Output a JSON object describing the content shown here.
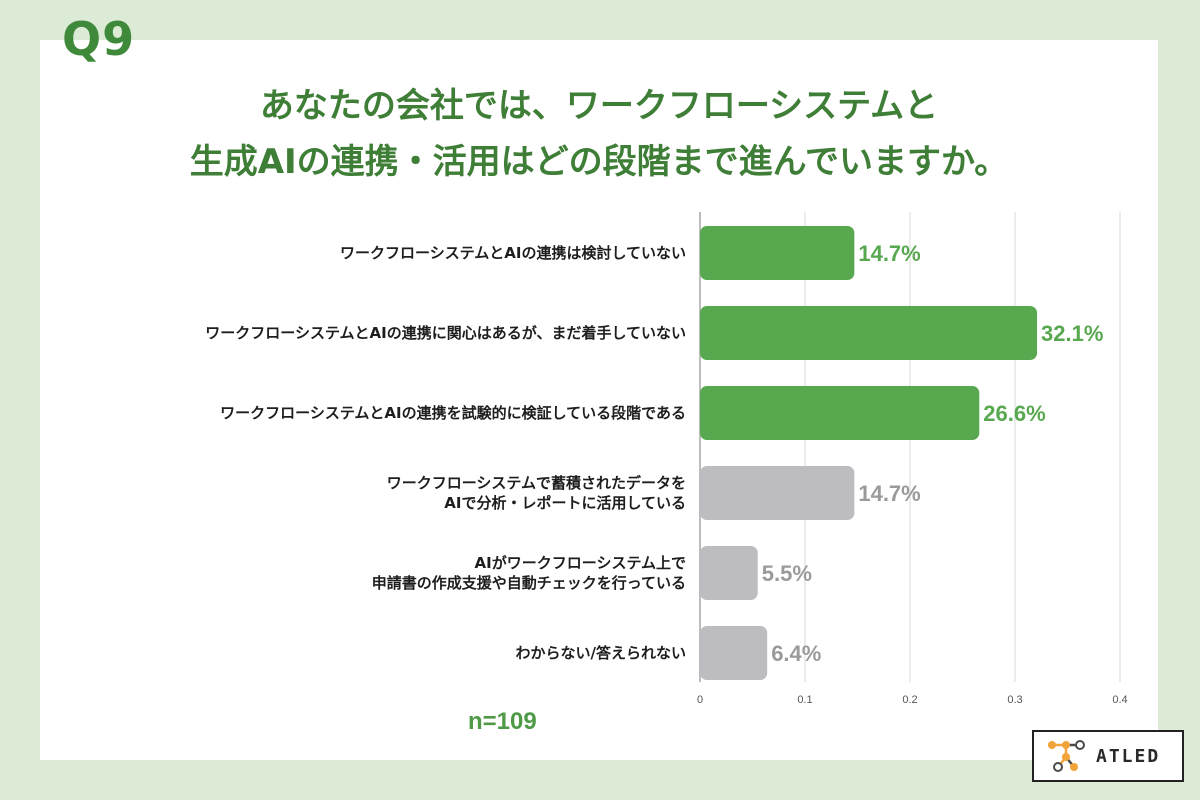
{
  "question_label": "Q9",
  "title": {
    "line1": "あなたの会社では、ワークフローシステムと",
    "line2": "生成AIの連携・活用はどの段階まで進んでいますか。"
  },
  "sample_size": "n=109",
  "brand": "ATLED",
  "colors": {
    "background": "#dcebd6",
    "title": "#3e7e36",
    "green_bar": "#58a84f",
    "gray_bar": "#bdbcc0",
    "green_label": "#58a84f",
    "gray_label": "#9a9a9a"
  },
  "chart_data": {
    "type": "bar",
    "orientation": "horizontal",
    "categories": [
      [
        "ワークフローシステムとAIの連携は検討していない"
      ],
      [
        "ワークフローシステムとAIの連携に関心はあるが、まだ着手していない"
      ],
      [
        "ワークフローシステムとAIの連携を試験的に検証している段階である"
      ],
      [
        "ワークフローシステムで蓄積されたデータを",
        "AIで分析・レポートに活用している"
      ],
      [
        "AIがワークフローシステム上で",
        "申請書の作成支援や自動チェックを行っている"
      ],
      [
        "わからない/答えられない"
      ]
    ],
    "values": [
      0.147,
      0.321,
      0.266,
      0.147,
      0.055,
      0.064
    ],
    "value_labels": [
      "14.7%",
      "32.1%",
      "26.6%",
      "14.7%",
      "5.5%",
      "6.4%"
    ],
    "bar_colors": [
      "green",
      "green",
      "green",
      "gray",
      "gray",
      "gray"
    ],
    "xlim": [
      0,
      0.4
    ],
    "xticks": [
      "0",
      "0.1",
      "0.2",
      "0.3",
      "0.4"
    ],
    "grid": true
  }
}
